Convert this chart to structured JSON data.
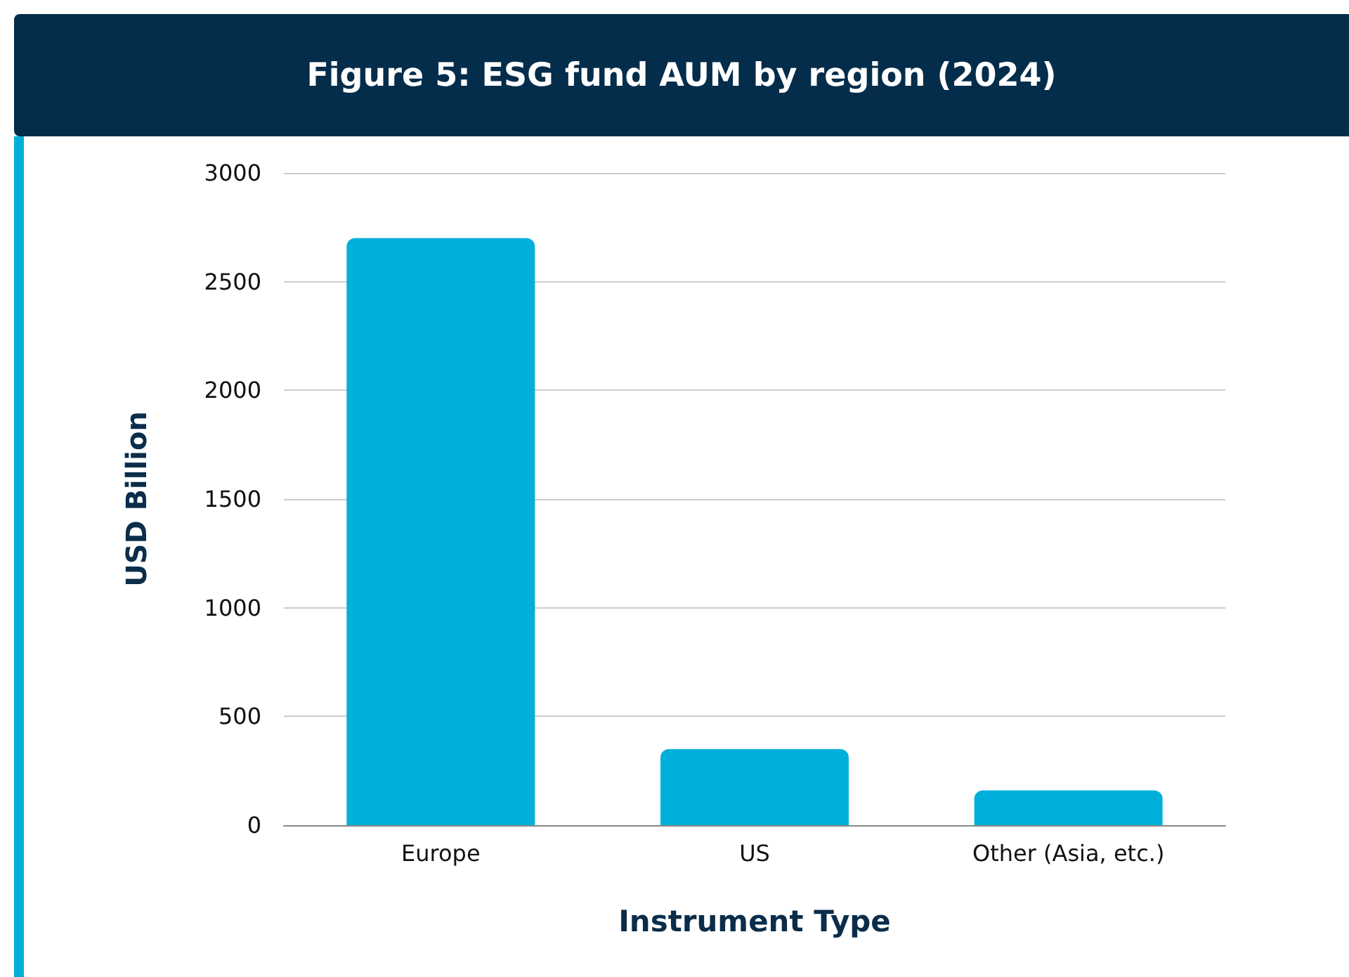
{
  "chart_data": {
    "type": "bar",
    "title": "Figure 5: ESG fund AUM by region (2024)",
    "categories": [
      "Europe",
      "US",
      "Other (Asia, etc.)"
    ],
    "values": [
      2700,
      350,
      160
    ],
    "color": "#00b0da",
    "xlabel": "Instrument Type",
    "ylabel": "USD Billion",
    "ylim": [
      0,
      3000
    ],
    "yticks": [
      0,
      500,
      1000,
      1500,
      2000,
      2500,
      3000
    ],
    "grid": "y"
  }
}
